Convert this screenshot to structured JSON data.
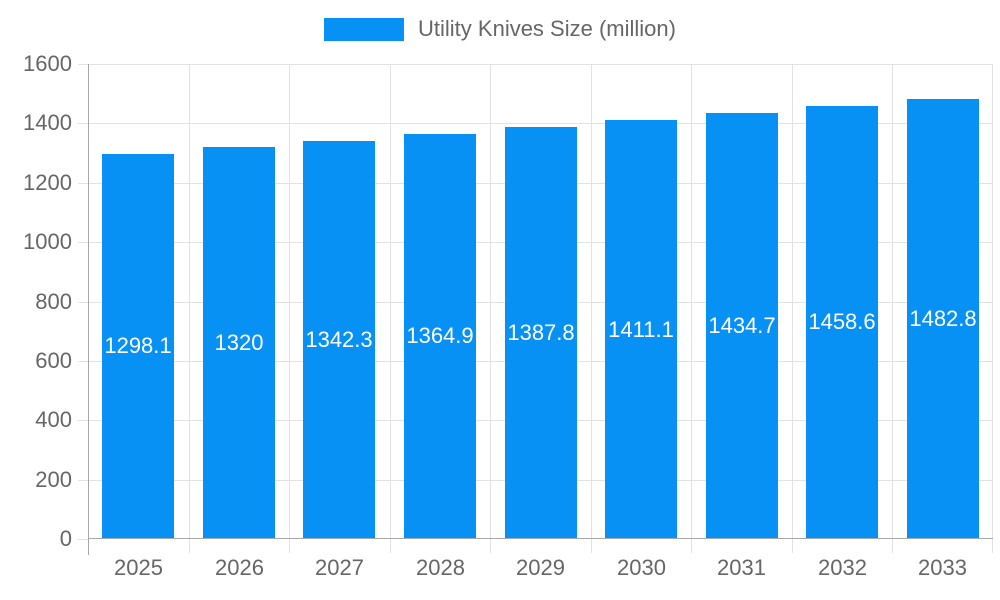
{
  "legend": {
    "label": "Utility Knives Size (million)"
  },
  "chart_data": {
    "type": "bar",
    "title": "",
    "legend": "Utility Knives Size (million)",
    "legend_position": "top",
    "categories": [
      "2025",
      "2026",
      "2027",
      "2028",
      "2029",
      "2030",
      "2031",
      "2032",
      "2033"
    ],
    "values": [
      1298.1,
      1320,
      1342.3,
      1364.9,
      1387.8,
      1411.1,
      1434.7,
      1458.6,
      1482.8
    ],
    "xlabel": "",
    "ylabel": "",
    "ylim": [
      0,
      1600
    ],
    "y_ticks": [
      0,
      200,
      400,
      600,
      800,
      1000,
      1200,
      1400,
      1600
    ],
    "grid": true,
    "bar_labels_visible": true,
    "colors": {
      "bar": "#0891f5",
      "grid": "#e2e2e2",
      "axis": "#a8a8a8",
      "text": "#666666",
      "bar_label": "#ffffff"
    }
  }
}
